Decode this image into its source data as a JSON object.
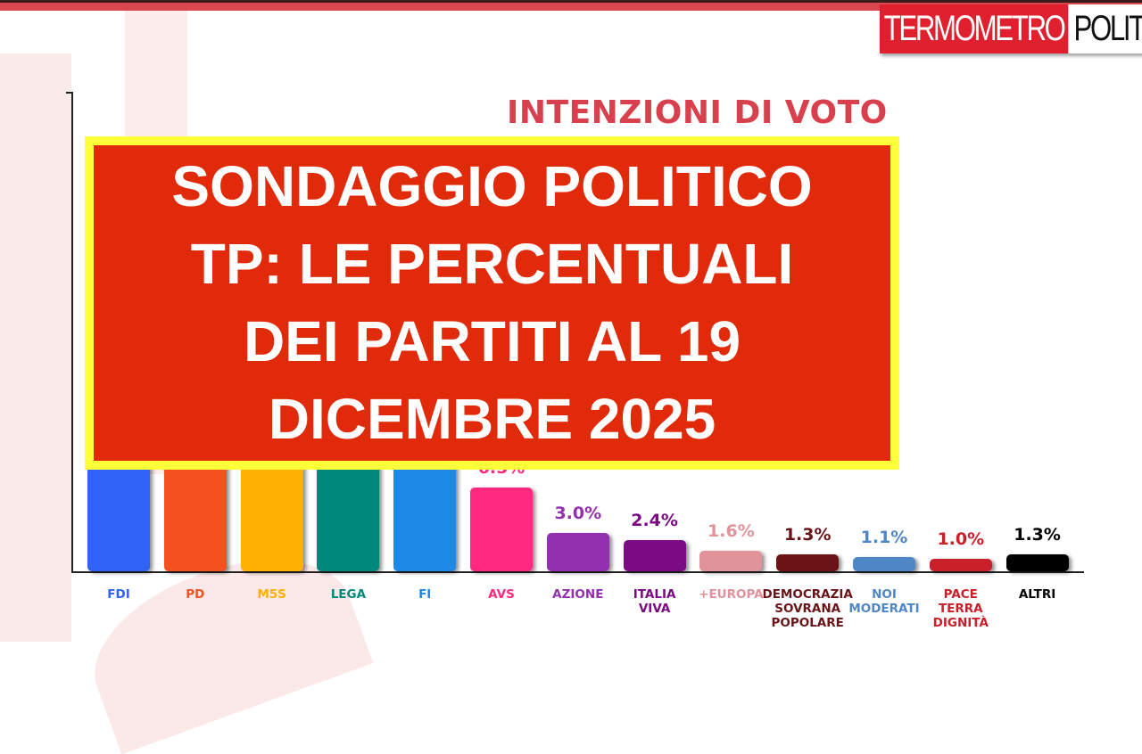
{
  "logo": {
    "part1": "TERMOMETRO",
    "part2": "POLITICO"
  },
  "overlay_headline": "SONDAGGIO POLITICO\nTP: LE PERCENTUALI\nDEI PARTITI AL 19\nDICEMBRE 2025",
  "chart_data": {
    "type": "bar",
    "title": "INTENZIONI DI VOTO",
    "categories": [
      "FDI",
      "PD",
      "M5S",
      "LEGA",
      "FI",
      "AVS",
      "AZIONE",
      "ITALIA\nVIVA",
      "+EUROPA",
      "DEMOCRAZIA\nSOVRANA\nPOPOLARE",
      "NOI\nMODERATI",
      "PACE\nTERRA\nDIGNITÀ",
      "ALTRI"
    ],
    "values": [
      null,
      null,
      null,
      null,
      null,
      6.5,
      3.0,
      2.4,
      1.6,
      1.3,
      1.1,
      1.0,
      1.3
    ],
    "value_labels": [
      "",
      "",
      "",
      "",
      "",
      "6.5%",
      "3.0%",
      "2.4%",
      "1.6%",
      "1.3%",
      "1.1%",
      "1.0%",
      "1.3%"
    ],
    "colors": [
      "#2f62f5",
      "#f4511e",
      "#ffb000",
      "#00897b",
      "#1e88e5",
      "#ff2a7f",
      "#9330b0",
      "#7b0a85",
      "#e0939b",
      "#6a1418",
      "#4f86c6",
      "#c9202a",
      "#000000"
    ],
    "label_colors": [
      "#2f62f5",
      "#f4511e",
      "#ffb000",
      "#00897b",
      "#1e88e5",
      "#ff2a7f",
      "#9330b0",
      "#7b0a85",
      "#e0939b",
      "#6a1418",
      "#4f86c6",
      "#c9202a",
      "#000000"
    ]
  }
}
